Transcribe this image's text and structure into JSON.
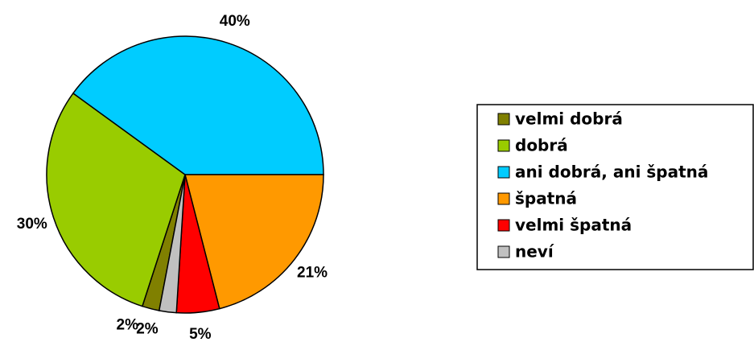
{
  "chart_data": {
    "type": "pie",
    "categories": [
      "velmi dobrá",
      "dobrá",
      "ani dobrá, ani špatná",
      "špatná",
      "velmi špatná",
      "neví"
    ],
    "values": [
      2,
      30,
      40,
      21,
      5,
      2
    ],
    "value_labels": [
      "2%",
      "30%",
      "40%",
      "21%",
      "5%",
      "2%"
    ],
    "colors": [
      "#808000",
      "#99cc00",
      "#00ccff",
      "#ff9900",
      "#ff0000",
      "#c0c0c0"
    ],
    "legend": "right"
  }
}
